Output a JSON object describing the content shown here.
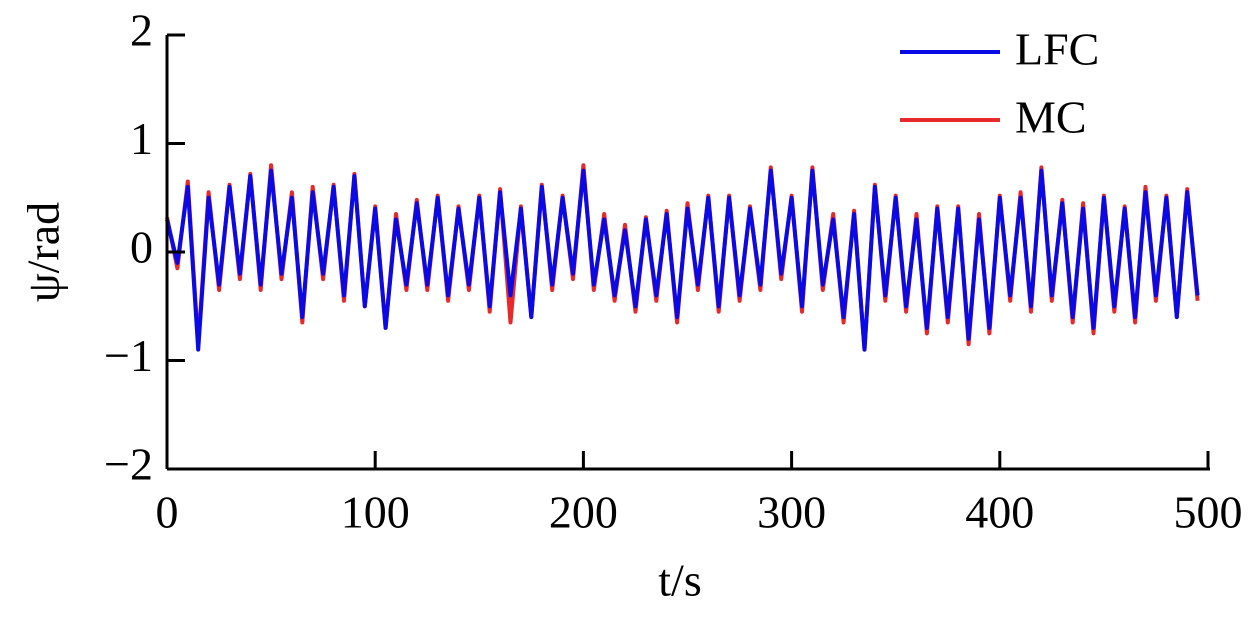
{
  "chart_data": {
    "type": "line",
    "xlabel": "t/s",
    "ylabel": "ψ/rad",
    "x": [
      0,
      5,
      10,
      15,
      20,
      25,
      30,
      35,
      40,
      45,
      50,
      55,
      60,
      65,
      70,
      75,
      80,
      85,
      90,
      95,
      100,
      105,
      110,
      115,
      120,
      125,
      130,
      135,
      140,
      145,
      150,
      155,
      160,
      165,
      170,
      175,
      180,
      185,
      190,
      195,
      200,
      205,
      210,
      215,
      220,
      225,
      230,
      235,
      240,
      245,
      250,
      255,
      260,
      265,
      270,
      275,
      280,
      285,
      290,
      295,
      300,
      305,
      310,
      315,
      320,
      325,
      330,
      335,
      340,
      345,
      350,
      355,
      360,
      365,
      370,
      375,
      380,
      385,
      390,
      395,
      400,
      405,
      410,
      415,
      420,
      425,
      430,
      435,
      440,
      445,
      450,
      455,
      460,
      465,
      470,
      475,
      480,
      485,
      490,
      495
    ],
    "series": [
      {
        "name": "MC",
        "color": "#e8282a",
        "values": [
          0.32,
          -0.15,
          0.65,
          -0.85,
          0.55,
          -0.35,
          0.62,
          -0.25,
          0.72,
          -0.35,
          0.8,
          -0.25,
          0.55,
          -0.65,
          0.6,
          -0.25,
          0.62,
          -0.45,
          0.72,
          -0.5,
          0.42,
          -0.7,
          0.35,
          -0.35,
          0.48,
          -0.35,
          0.52,
          -0.45,
          0.42,
          -0.35,
          0.52,
          -0.55,
          0.58,
          -0.65,
          0.42,
          -0.6,
          0.62,
          -0.35,
          0.52,
          -0.25,
          0.8,
          -0.35,
          0.35,
          -0.45,
          0.25,
          -0.55,
          0.32,
          -0.45,
          0.38,
          -0.65,
          0.45,
          -0.35,
          0.52,
          -0.55,
          0.52,
          -0.45,
          0.42,
          -0.35,
          0.78,
          -0.25,
          0.52,
          -0.55,
          0.78,
          -0.35,
          0.35,
          -0.65,
          0.38,
          -0.9,
          0.62,
          -0.45,
          0.52,
          -0.55,
          0.35,
          -0.75,
          0.42,
          -0.65,
          0.42,
          -0.85,
          0.35,
          -0.75,
          0.52,
          -0.45,
          0.55,
          -0.55,
          0.78,
          -0.45,
          0.48,
          -0.65,
          0.45,
          -0.75,
          0.52,
          -0.55,
          0.42,
          -0.65,
          0.6,
          -0.45,
          0.52,
          -0.6,
          0.58,
          -0.45
        ]
      },
      {
        "name": "LFC",
        "color": "#0a0ae6",
        "values": [
          0.3,
          -0.1,
          0.6,
          -0.9,
          0.5,
          -0.3,
          0.6,
          -0.2,
          0.7,
          -0.3,
          0.75,
          -0.2,
          0.5,
          -0.6,
          0.55,
          -0.2,
          0.6,
          -0.4,
          0.7,
          -0.5,
          0.4,
          -0.7,
          0.3,
          -0.3,
          0.45,
          -0.3,
          0.5,
          -0.4,
          0.4,
          -0.3,
          0.5,
          -0.5,
          0.55,
          -0.4,
          0.4,
          -0.6,
          0.6,
          -0.3,
          0.5,
          -0.2,
          0.75,
          -0.3,
          0.3,
          -0.4,
          0.2,
          -0.5,
          0.3,
          -0.4,
          0.35,
          -0.6,
          0.4,
          -0.3,
          0.5,
          -0.5,
          0.5,
          -0.4,
          0.4,
          -0.3,
          0.75,
          -0.2,
          0.5,
          -0.5,
          0.75,
          -0.3,
          0.3,
          -0.6,
          0.35,
          -0.9,
          0.6,
          -0.4,
          0.5,
          -0.5,
          0.3,
          -0.7,
          0.4,
          -0.6,
          0.4,
          -0.8,
          0.3,
          -0.7,
          0.5,
          -0.4,
          0.5,
          -0.5,
          0.75,
          -0.4,
          0.45,
          -0.6,
          0.4,
          -0.7,
          0.5,
          -0.5,
          0.4,
          -0.6,
          0.55,
          -0.4,
          0.5,
          -0.6,
          0.55,
          -0.4
        ]
      }
    ],
    "legend_order": [
      "LFC",
      "MC"
    ],
    "legend": "upper right",
    "xlim": [
      0,
      500
    ],
    "xticks": [
      0,
      100,
      200,
      300,
      400,
      500
    ],
    "ylim": [
      -2,
      2
    ],
    "yticks": [
      {
        "value": -2,
        "label": "−2"
      },
      {
        "value": -1,
        "label": "−1"
      },
      0,
      1,
      2
    ]
  }
}
